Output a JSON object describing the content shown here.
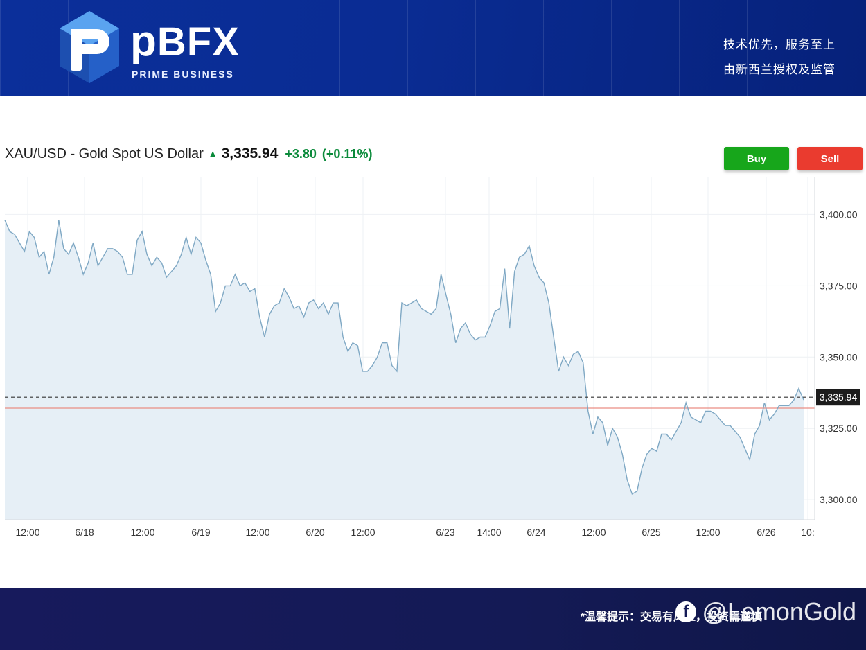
{
  "header": {
    "brand": "BFX",
    "brand_sub": "PRIME BUSINESS",
    "slogan_line1": "技术优先，服务至上",
    "slogan_line2": "由新西兰授权及监管"
  },
  "quote": {
    "symbol": "XAU/USD - Gold Spot US Dollar",
    "price": "3,335.94",
    "change": "+3.80",
    "change_pct": "(+0.11%)",
    "up_color": "#0a8a3a"
  },
  "actions": {
    "buy_label": "Buy",
    "sell_label": "Sell"
  },
  "footer": {
    "note": "*温馨提示：交易有风险，投资需谨慎",
    "watermark": "@LemonGold"
  },
  "colors": {
    "line": "#7fa8c4",
    "area": "#e6eff6",
    "ref_line": "#e98d84",
    "last_price_tag": "#1c1c1c"
  },
  "chart_data": {
    "type": "area",
    "grid": true,
    "ylim": [
      3293,
      3412
    ],
    "yticks": [
      3300,
      3325,
      3350,
      3375,
      3400
    ],
    "ytick_labels": [
      "3,300.00",
      "3,325.00",
      "3,350.00",
      "3,375.00",
      "3,400.00"
    ],
    "xtick_labels": [
      "12:00",
      "6/18",
      "12:00",
      "6/19",
      "12:00",
      "6/20",
      "12:00",
      "6/23",
      "14:00",
      "6/24",
      "12:00",
      "6/25",
      "12:00",
      "6/26",
      "10:"
    ],
    "last_price": 3335.94,
    "last_price_label": "3,335.94",
    "reference_price": 3332.1,
    "series": [
      {
        "values": [
          3398,
          3394,
          3393,
          3390,
          3387,
          3394,
          3392,
          3385,
          3387,
          3379,
          3385,
          3398,
          3388,
          3386,
          3390,
          3385,
          3379,
          3383,
          3390,
          3382,
          3385,
          3388,
          3388,
          3387,
          3385,
          3379,
          3379,
          3391,
          3394,
          3386,
          3382,
          3385,
          3383,
          3378,
          3380,
          3382,
          3386,
          3392,
          3386,
          3392,
          3390,
          3384,
          3379,
          3366,
          3369,
          3375,
          3375,
          3379,
          3375,
          3376,
          3373,
          3374,
          3364,
          3357,
          3365,
          3368,
          3369,
          3374,
          3371,
          3367,
          3368,
          3364,
          3369,
          3370,
          3367,
          3369,
          3365,
          3369,
          3369,
          3357,
          3352,
          3355,
          3354,
          3345,
          3345,
          3347,
          3350,
          3355,
          3355,
          3347,
          3345,
          3369,
          3368,
          3369,
          3370,
          3367,
          3366,
          3365,
          3367,
          3379,
          3372,
          3365,
          3355,
          3360,
          3362,
          3358,
          3356,
          3357,
          3357,
          3361,
          3366,
          3367,
          3381,
          3360,
          3380,
          3385,
          3386,
          3389,
          3382,
          3378,
          3376,
          3369,
          3357,
          3345,
          3350,
          3347,
          3351,
          3352,
          3348,
          3331,
          3323,
          3329,
          3327,
          3319,
          3325,
          3322,
          3316,
          3307,
          3302,
          3303,
          3311,
          3316,
          3318,
          3317,
          3323,
          3323,
          3321,
          3324,
          3327,
          3334,
          3329,
          3328,
          3327,
          3331,
          3331,
          3330,
          3328,
          3326,
          3326,
          3324,
          3322,
          3318,
          3314,
          3323,
          3326,
          3334,
          3328,
          3330,
          3333,
          3333,
          3333,
          3335,
          3339,
          3335
        ]
      }
    ]
  }
}
